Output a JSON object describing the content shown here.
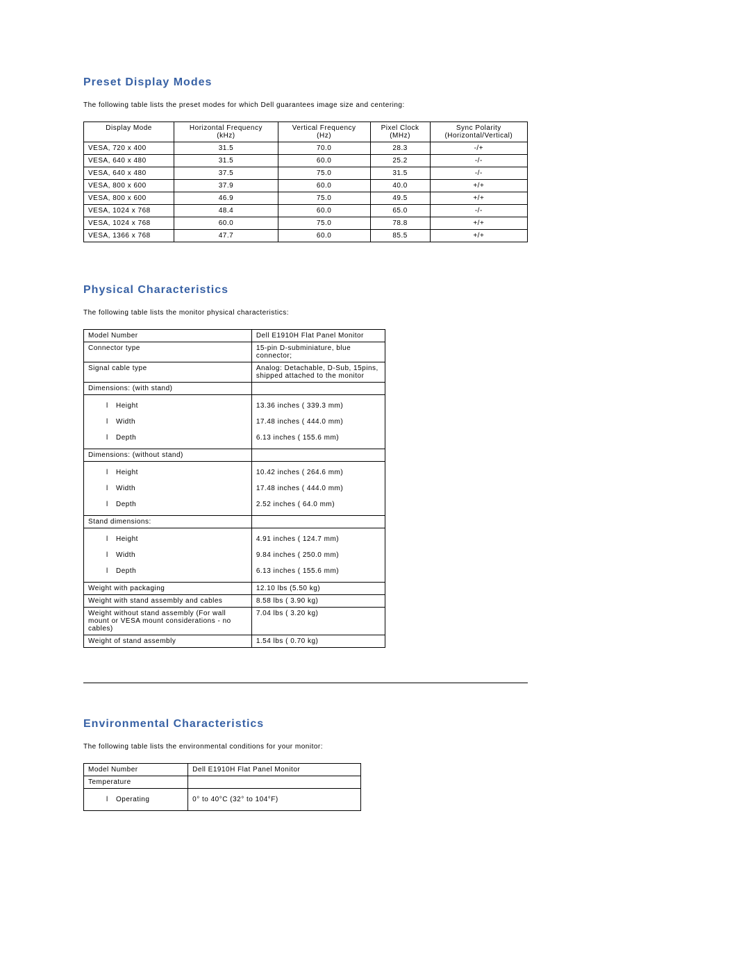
{
  "preset": {
    "heading": "Preset Display Modes",
    "intro": "The following table lists the preset modes for which Dell guarantees image size and centering:",
    "columns": [
      "Display Mode",
      "Horizontal Frequency (kHz)",
      "Vertical Frequency (Hz)",
      "Pixel Clock (MHz)",
      "Sync Polarity (Horizontal/Vertical)"
    ],
    "rows": [
      [
        "VESA, 720 x 400",
        "31.5",
        "70.0",
        "28.3",
        "-/+"
      ],
      [
        "VESA, 640 x 480",
        "31.5",
        "60.0",
        "25.2",
        "-/-"
      ],
      [
        "VESA, 640 x 480",
        "37.5",
        "75.0",
        "31.5",
        "-/-"
      ],
      [
        "VESA, 800 x 600",
        "37.9",
        "60.0",
        "40.0",
        "+/+"
      ],
      [
        "VESA, 800 x 600",
        "46.9",
        "75.0",
        "49.5",
        "+/+"
      ],
      [
        "VESA, 1024 x 768",
        "48.4",
        "60.0",
        "65.0",
        "-/-"
      ],
      [
        "VESA, 1024 x 768",
        "60.0",
        "75.0",
        "78.8",
        "+/+"
      ],
      [
        "VESA, 1366 x 768",
        "47.7",
        "60.0",
        "85.5",
        "+/+"
      ]
    ]
  },
  "physical": {
    "heading": "Physical Characteristics",
    "intro": "The following table lists the monitor physical characteristics:",
    "rows": [
      {
        "label": "Model Number",
        "value": "Dell E1910H Flat Panel Monitor"
      },
      {
        "label": "Connector type",
        "value": "15-pin D-subminiature, blue connector;"
      },
      {
        "label": "Signal cable type",
        "value": "Analog: Detachable, D-Sub, 15pins, shipped attached to the monitor"
      },
      {
        "label": "Dimensions: (with stand)",
        "value": ""
      },
      {
        "label": "Height",
        "value": "13.36 inches ( 339.3 mm)",
        "sub": true
      },
      {
        "label": "Width",
        "value": "17.48 inches ( 444.0 mm)",
        "sub": true
      },
      {
        "label": "Depth",
        "value": "6.13 inches ( 155.6 mm)",
        "sub": true
      },
      {
        "label": "Dimensions: (without stand)",
        "value": ""
      },
      {
        "label": "Height",
        "value": "10.42 inches ( 264.6 mm)",
        "sub": true
      },
      {
        "label": "Width",
        "value": "17.48 inches ( 444.0 mm)",
        "sub": true
      },
      {
        "label": "Depth",
        "value": "2.52 inches ( 64.0 mm)",
        "sub": true
      },
      {
        "label": "Stand dimensions:",
        "value": ""
      },
      {
        "label": "Height",
        "value": "4.91 inches ( 124.7 mm)",
        "sub": true
      },
      {
        "label": "Width",
        "value": "9.84 inches ( 250.0 mm)",
        "sub": true
      },
      {
        "label": "Depth",
        "value": "6.13 inches ( 155.6 mm)",
        "sub": true
      },
      {
        "label": "Weight with packaging",
        "value": "12.10 lbs (5.50 kg)"
      },
      {
        "label": "Weight with stand assembly and cables",
        "value": "8.58 lbs ( 3.90 kg)"
      },
      {
        "label": "Weight without stand assembly (For wall mount or VESA mount considerations - no cables)",
        "value": "7.04 lbs ( 3.20 kg)"
      },
      {
        "label": "Weight of stand assembly",
        "value": "1.54 lbs ( 0.70 kg)"
      }
    ],
    "sub_group_size": 3
  },
  "env": {
    "heading": "Environmental Characteristics",
    "intro": "The following table lists the environmental conditions for your monitor:",
    "rows": [
      {
        "label": "Model Number",
        "value": "Dell E1910H Flat Panel Monitor"
      },
      {
        "label": "Temperature",
        "value": ""
      },
      {
        "label": "Operating",
        "value": "0° to 40°C (32° to 104°F)",
        "sub": true
      }
    ]
  },
  "style": {
    "heading_color": "#3761a5",
    "text_color": "#000000",
    "background_color": "#ffffff",
    "border_color": "#000000",
    "heading_fontsize": 16,
    "body_fontsize": 10,
    "font_family": "Verdana, Arial, sans-serif"
  }
}
